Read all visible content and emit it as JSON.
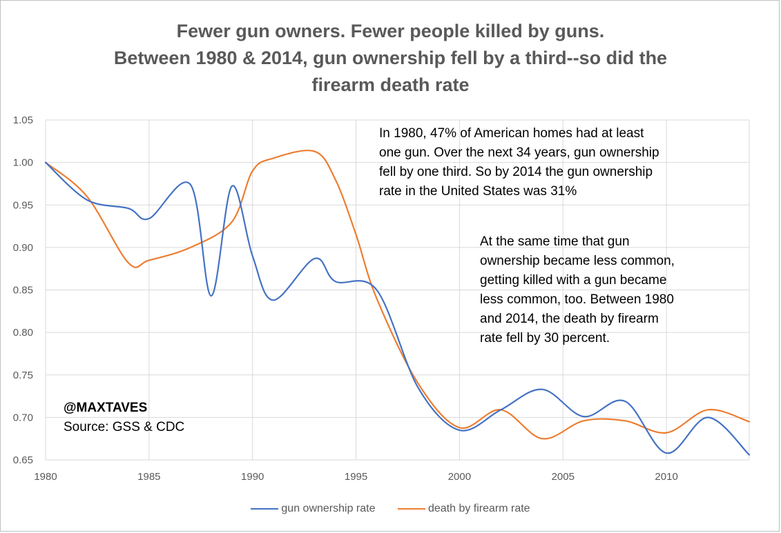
{
  "chart_data": {
    "type": "line",
    "title_lines": [
      "Fewer gun owners. Fewer people killed by guns.",
      "Between 1980 & 2014, gun ownership fell by a third--so did the",
      "firearm death rate"
    ],
    "xlabel": "",
    "ylabel": "",
    "xlim": [
      1980,
      2014
    ],
    "ylim": [
      0.65,
      1.05
    ],
    "x_ticks": [
      "1980",
      "1985",
      "1990",
      "1995",
      "2000",
      "2005",
      "2010"
    ],
    "y_ticks": [
      "1.05",
      "1.00",
      "0.95",
      "0.90",
      "0.85",
      "0.80",
      "0.75",
      "0.70",
      "0.65"
    ],
    "grid": true,
    "legend_position": "bottom",
    "series": [
      {
        "name": "gun ownership rate",
        "color": "#4472C4",
        "x": [
          1980,
          1982,
          1984,
          1985,
          1987,
          1988,
          1989,
          1990,
          1991,
          1993,
          1994,
          1996,
          1998,
          2000,
          2002,
          2004,
          2006,
          2008,
          2010,
          2012,
          2014
        ],
        "y": [
          1.0,
          0.956,
          0.946,
          0.934,
          0.974,
          0.843,
          0.972,
          0.89,
          0.838,
          0.887,
          0.86,
          0.85,
          0.735,
          0.685,
          0.709,
          0.733,
          0.701,
          0.719,
          0.658,
          0.7,
          0.656
        ]
      },
      {
        "name": "death by firearm rate",
        "color": "#ED7D31",
        "x": [
          1980,
          1982,
          1984,
          1985,
          1987,
          1989,
          1990,
          1991,
          1993,
          1994,
          1995,
          1996,
          1998,
          2000,
          2002,
          2004,
          2006,
          2008,
          2010,
          2012,
          2014
        ],
        "y": [
          1.0,
          0.96,
          0.882,
          0.885,
          0.9,
          0.93,
          0.99,
          1.005,
          1.013,
          0.98,
          0.915,
          0.84,
          0.74,
          0.688,
          0.709,
          0.675,
          0.696,
          0.696,
          0.682,
          0.709,
          0.695
        ]
      }
    ],
    "annotations": [
      {
        "lines": [
          "In 1980, 47% of American homes had at least",
          "one gun. Over the next 34 years, gun ownership",
          "fell by one third. So by 2014 the gun ownership",
          "rate in the United States was 31%"
        ]
      },
      {
        "lines": [
          "At the same time that gun",
          "ownership became less common,",
          "getting killed with a gun became",
          "less common, too. Between 1980",
          "and 2014, the death by firearm",
          "rate fell by 30 percent."
        ]
      }
    ],
    "credit": {
      "handle": "@MAXTAVES",
      "source": "Source: GSS & CDC"
    }
  }
}
